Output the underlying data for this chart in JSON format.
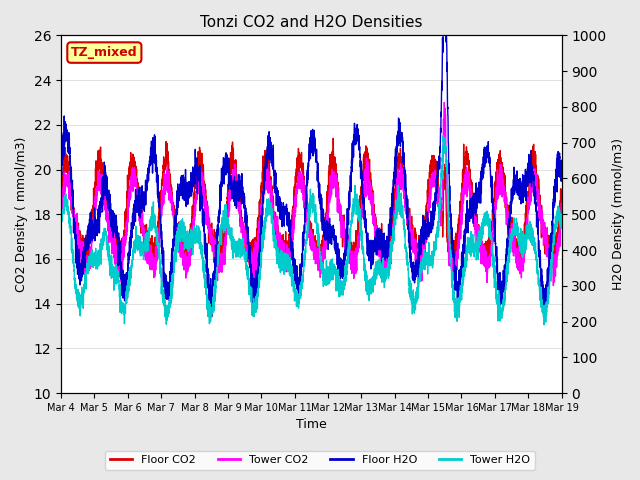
{
  "title": "Tonzi CO2 and H2O Densities",
  "xlabel": "Time",
  "ylabel_left": "CO2 Density ( mmol/m3)",
  "ylabel_right": "H2O Density (mmol/m3)",
  "ylim_left": [
    10,
    26
  ],
  "ylim_right": [
    0,
    1000
  ],
  "yticks_left": [
    10,
    12,
    14,
    16,
    18,
    20,
    22,
    24,
    26
  ],
  "yticks_right": [
    0,
    100,
    200,
    300,
    400,
    500,
    600,
    700,
    800,
    900,
    1000
  ],
  "xtick_labels": [
    "Mar 4",
    "Mar 5",
    "Mar 6",
    "Mar 7",
    "Mar 8",
    "Mar 9",
    "Mar 10",
    "Mar 11",
    "Mar 12",
    "Mar 13",
    "Mar 14",
    "Mar 15",
    "Mar 16",
    "Mar 17",
    "Mar 18",
    "Mar 19"
  ],
  "annotation_text": "TZ_mixed",
  "annotation_color": "#cc0000",
  "annotation_bg": "#ffff99",
  "annotation_border": "#cc0000",
  "line_colors": {
    "floor_co2": "#dd0000",
    "tower_co2": "#ff00ff",
    "floor_h2o": "#0000cc",
    "tower_h2o": "#00cccc"
  },
  "legend_labels": [
    "Floor CO2",
    "Tower CO2",
    "Floor H2O",
    "Tower H2O"
  ],
  "bg_color": "#e8e8e8",
  "plot_bg": "#ffffff",
  "n_points": 3600,
  "days": 15
}
